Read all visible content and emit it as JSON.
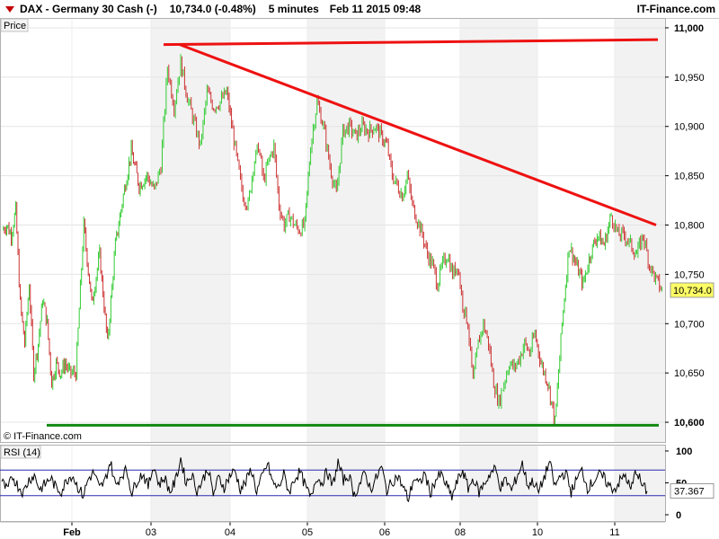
{
  "header": {
    "instrument": "DAX - Germany 30 Cash (-)",
    "quote": "10,734.0 (-0.48%)",
    "interval": "5 minutes",
    "datetime": "Feb 11 2015 09:48",
    "site": "IT-Finance.com"
  },
  "watermark": "© IT-Finance.com",
  "colors": {
    "up": "#33cc33",
    "down": "#cc3333",
    "trendline": "#ee1111",
    "support": "#118811",
    "last_price_box": "#ffff66",
    "session_shade": "#f2f2f2"
  },
  "chart_data": [
    {
      "type": "candlestick",
      "title": "Price",
      "ylim": [
        10580,
        11010
      ],
      "yticks": [
        10600,
        10650,
        10700,
        10750,
        10800,
        10850,
        10900,
        10950,
        11000
      ],
      "ytick_labels": [
        "10,600",
        "10,650",
        "10,700",
        "10,750",
        "10,800",
        "10,850",
        "10,900",
        "10,950",
        "11,000"
      ],
      "last_price_label": "10,734.0",
      "x_labels": [
        "Feb",
        "03",
        "04",
        "05",
        "06",
        "08",
        "10",
        "11"
      ],
      "shaded_sessions": [
        "03",
        "05",
        "08",
        "11"
      ],
      "close_path": [
        [
          "01",
          10795
        ],
        [
          "01",
          10800
        ],
        [
          "01",
          10790
        ],
        [
          "01",
          10815
        ],
        [
          "01",
          10720
        ],
        [
          "01",
          10680
        ],
        [
          "01",
          10740
        ],
        [
          "01",
          10650
        ],
        [
          "01",
          10680
        ],
        [
          "01",
          10725
        ],
        [
          "01",
          10700
        ],
        [
          "01",
          10640
        ],
        [
          "01",
          10660
        ],
        [
          "01",
          10650
        ],
        [
          "01",
          10660
        ],
        [
          "01",
          10650
        ],
        [
          "Feb",
          10650
        ],
        [
          "Feb",
          10800
        ],
        [
          "Feb",
          10720
        ],
        [
          "Feb",
          10770
        ],
        [
          "Feb",
          10680
        ],
        [
          "Feb",
          10780
        ],
        [
          "Feb",
          10830
        ],
        [
          "Feb",
          10875
        ],
        [
          "Feb",
          10840
        ],
        [
          "Feb",
          10850
        ],
        [
          "03",
          10835
        ],
        [
          "03",
          10860
        ],
        [
          "03",
          10960
        ],
        [
          "03",
          10920
        ],
        [
          "03",
          10965
        ],
        [
          "03",
          10930
        ],
        [
          "03",
          10905
        ],
        [
          "03",
          10880
        ],
        [
          "03",
          10935
        ],
        [
          "03",
          10920
        ],
        [
          "03",
          10925
        ],
        [
          "03",
          10935
        ],
        [
          "04",
          10895
        ],
        [
          "04",
          10860
        ],
        [
          "04",
          10830
        ],
        [
          "04",
          10820
        ],
        [
          "04",
          10860
        ],
        [
          "04",
          10880
        ],
        [
          "04",
          10845
        ],
        [
          "04",
          10865
        ],
        [
          "04",
          10880
        ],
        [
          "04",
          10820
        ],
        [
          "04",
          10800
        ],
        [
          "04",
          10810
        ],
        [
          "04",
          10800
        ],
        [
          "04",
          10795
        ],
        [
          "04",
          10800
        ],
        [
          "05",
          10880
        ],
        [
          "05",
          10925
        ],
        [
          "05",
          10900
        ],
        [
          "05",
          10860
        ],
        [
          "05",
          10830
        ],
        [
          "05",
          10895
        ],
        [
          "05",
          10900
        ],
        [
          "05",
          10890
        ],
        [
          "05",
          10900
        ],
        [
          "05",
          10895
        ],
        [
          "05",
          10900
        ],
        [
          "05",
          10890
        ],
        [
          "06",
          10880
        ],
        [
          "06",
          10850
        ],
        [
          "06",
          10840
        ],
        [
          "06",
          10830
        ],
        [
          "06",
          10850
        ],
        [
          "06",
          10820
        ],
        [
          "06",
          10805
        ],
        [
          "06",
          10790
        ],
        [
          "06",
          10770
        ],
        [
          "06",
          10760
        ],
        [
          "06",
          10740
        ],
        [
          "06",
          10760
        ],
        [
          "06",
          10770
        ],
        [
          "06",
          10750
        ],
        [
          "06",
          10760
        ],
        [
          "08",
          10720
        ],
        [
          "08",
          10700
        ],
        [
          "08",
          10640
        ],
        [
          "08",
          10680
        ],
        [
          "08",
          10700
        ],
        [
          "08",
          10680
        ],
        [
          "08",
          10640
        ],
        [
          "08",
          10620
        ],
        [
          "08",
          10640
        ],
        [
          "08",
          10660
        ],
        [
          "08",
          10655
        ],
        [
          "08",
          10665
        ],
        [
          "08",
          10680
        ],
        [
          "08",
          10670
        ],
        [
          "08",
          10690
        ],
        [
          "10",
          10660
        ],
        [
          "10",
          10640
        ],
        [
          "10",
          10600
        ],
        [
          "10",
          10700
        ],
        [
          "10",
          10780
        ],
        [
          "10",
          10760
        ],
        [
          "10",
          10740
        ],
        [
          "10",
          10770
        ],
        [
          "10",
          10790
        ],
        [
          "10",
          10780
        ],
        [
          "10",
          10810
        ],
        [
          "11",
          10790
        ],
        [
          "11",
          10790
        ],
        [
          "11",
          10780
        ],
        [
          "11",
          10770
        ],
        [
          "11",
          10790
        ],
        [
          "11",
          10760
        ],
        [
          "11",
          10745
        ],
        [
          "11",
          10734
        ]
      ],
      "annotations": {
        "resistance_line": {
          "from": [
            "03",
            10983
          ],
          "to": [
            "11",
            10988
          ]
        },
        "downtrend_line": {
          "from": [
            "03",
            10983
          ],
          "to": [
            "11",
            10800
          ]
        },
        "support_line": {
          "from": [
            "01",
            10597
          ],
          "to": [
            "11",
            10597
          ]
        }
      }
    },
    {
      "type": "line",
      "title": "RSI (14)",
      "ylim": [
        0,
        100
      ],
      "yticks": [
        0,
        50,
        100
      ],
      "ytick_labels": [
        "0",
        "50",
        "100"
      ],
      "guide_levels": [
        70,
        30
      ],
      "last_value_label": "37.367",
      "series": [
        {
          "values": [
            52,
            38,
            60,
            45,
            35,
            55,
            62,
            40,
            48,
            58,
            42,
            37,
            55,
            63,
            44,
            30,
            57,
            66,
            41,
            52,
            84,
            45,
            62,
            70,
            34,
            55,
            65,
            44,
            78,
            47,
            59,
            36,
            52,
            88,
            50,
            64,
            38,
            53,
            74,
            32,
            58,
            43,
            61,
            69,
            40,
            51,
            72,
            36,
            59,
            80,
            49,
            42,
            63,
            35,
            57,
            67,
            44,
            26,
            60,
            50,
            68,
            45,
            82,
            54,
            62,
            31,
            48,
            65,
            40,
            56,
            75,
            38,
            52,
            61,
            43,
            24,
            58,
            47,
            66,
            33,
            55,
            63,
            46,
            28,
            52,
            70,
            41,
            57,
            35,
            49,
            64,
            72,
            43,
            55,
            38,
            60,
            80,
            46,
            53,
            35,
            58,
            83,
            44,
            61,
            66,
            36,
            55,
            70,
            42,
            51,
            63,
            58,
            45,
            40,
            53,
            62,
            38,
            71,
            47,
            37
          ]
        }
      ]
    }
  ]
}
